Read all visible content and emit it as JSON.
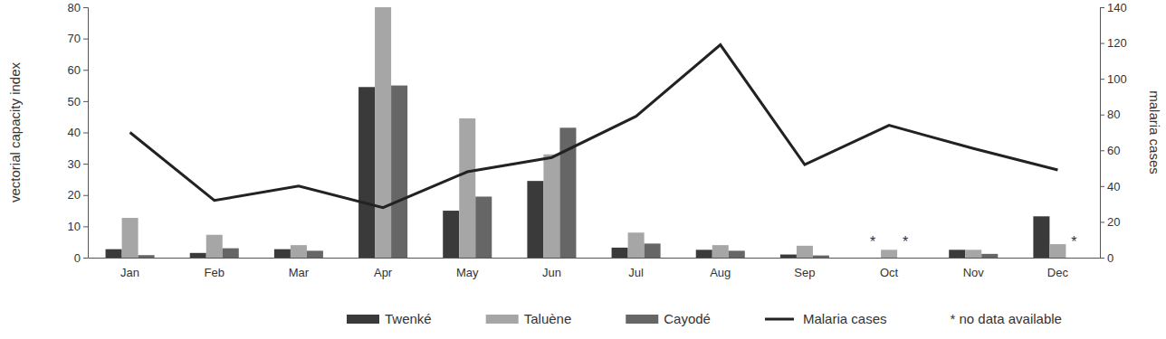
{
  "chart_data": {
    "type": "bar",
    "y_label": "vectorial capacity index",
    "y2_label": "malaria cases",
    "categories": [
      "Jan",
      "Feb",
      "Mar",
      "Apr",
      "May",
      "Jun",
      "Jul",
      "Aug",
      "Sep",
      "Oct",
      "Nov",
      "Dec"
    ],
    "series": [
      {
        "name": "Twenké",
        "color": "#3a3a3a",
        "type": "bar",
        "values": [
          2.7,
          1.5,
          2.7,
          54.5,
          15,
          24.5,
          3.2,
          2.5,
          1,
          null,
          2.5,
          13.2
        ]
      },
      {
        "name": "Taluène",
        "color": "#a6a6a6",
        "type": "bar",
        "values": [
          12.7,
          7.3,
          4,
          80,
          44.5,
          33,
          8,
          4,
          3.8,
          2.5,
          2.5,
          4.3
        ]
      },
      {
        "name": "Cayodé",
        "color": "#666666",
        "type": "bar",
        "values": [
          0.8,
          3,
          2.2,
          55,
          19.5,
          41.5,
          4.5,
          2.2,
          0.7,
          null,
          1.2,
          null
        ]
      },
      {
        "name": "Malaria cases",
        "color": "#222222",
        "type": "line",
        "axis": "y2",
        "values": [
          70,
          32,
          40,
          28,
          48,
          56,
          79,
          119,
          52,
          74,
          61,
          49
        ]
      }
    ],
    "ylim": [
      0,
      80
    ],
    "yticks": [
      0,
      10,
      20,
      30,
      40,
      50,
      60,
      70,
      80
    ],
    "y2lim": [
      0,
      140
    ],
    "y2ticks": [
      0,
      20,
      40,
      60,
      80,
      100,
      120,
      140
    ],
    "no_data_symbol": "*",
    "annotations": [
      "* no data available"
    ],
    "legend": "bottom",
    "grid": false
  }
}
